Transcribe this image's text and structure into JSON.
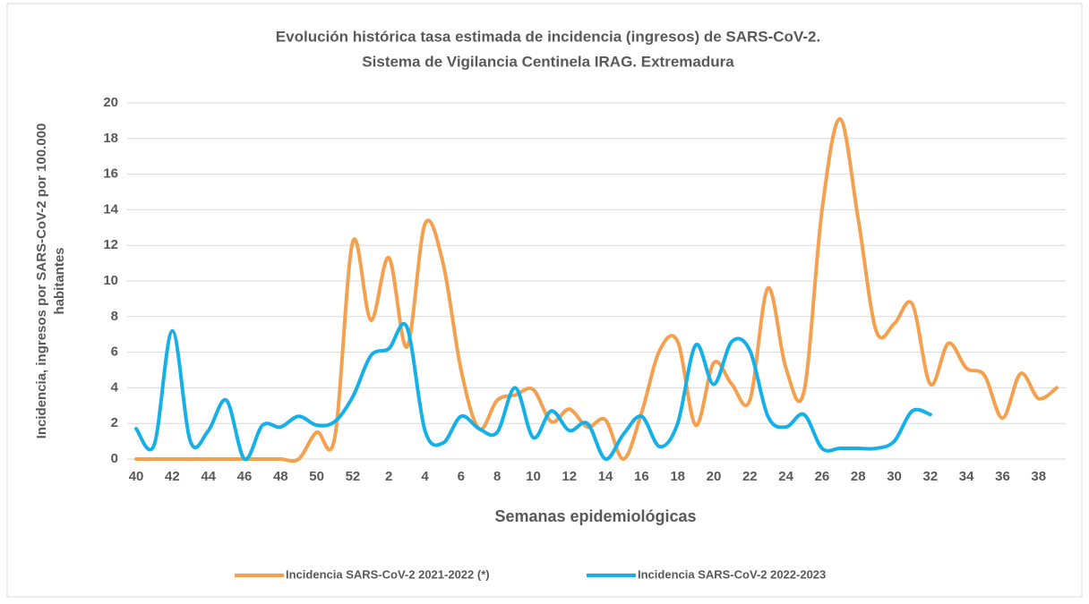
{
  "chart_data": {
    "type": "line",
    "title": [
      "Evolución histórica tasa estimada de incidencia (ingresos) de SARS-CoV-2.",
      "Sistema de Vigilancia Centinela IRAG. Extremadura"
    ],
    "x_label": "Semanas epidemiológicas",
    "y_label": [
      "Incidencia, ingresos por SARS-CoV-2 por  100.000",
      "habitantes"
    ],
    "categories": [
      "40",
      null,
      "42",
      null,
      "44",
      null,
      "46",
      null,
      "48",
      null,
      "50",
      null,
      "52",
      null,
      "2",
      null,
      "4",
      null,
      "6",
      null,
      "8",
      null,
      "10",
      null,
      "12",
      null,
      "14",
      null,
      "16",
      null,
      "18",
      null,
      "20",
      null,
      "22",
      null,
      "24",
      null,
      "26",
      null,
      "28",
      null,
      "30",
      null,
      "32",
      null,
      "34",
      null,
      "36",
      null,
      "38",
      null
    ],
    "series": [
      {
        "name": "Incidencia SARS-CoV-2 2021-2022 (*)",
        "color": "#f4a04f",
        "values": [
          0,
          0,
          0,
          0,
          0,
          0,
          0,
          0,
          0,
          0,
          1.5,
          1.2,
          12.2,
          7.8,
          11.3,
          6.3,
          13.2,
          11,
          5,
          1.7,
          3.3,
          3.6,
          3.9,
          2.1,
          2.8,
          1.8,
          2.2,
          0,
          2.6,
          6.1,
          6.6,
          1.9,
          5.4,
          4.2,
          3.3,
          9.6,
          5.1,
          3.8,
          14,
          19.1,
          13.5,
          7.2,
          7.6,
          8.7,
          4.2,
          6.5,
          5.1,
          4.7,
          2.3,
          4.8,
          3.4,
          4.0
        ]
      },
      {
        "name": "Incidencia SARS-CoV-2 2022-2023",
        "color": "#16b0e8",
        "values": [
          1.7,
          0.8,
          7.2,
          1.0,
          1.6,
          3.3,
          0,
          1.9,
          1.8,
          2.4,
          1.9,
          2.1,
          3.5,
          5.8,
          6.2,
          7.4,
          1.6,
          0.9,
          2.4,
          1.7,
          1.5,
          4.0,
          1.2,
          2.7,
          1.6,
          2.0,
          0,
          1.4,
          2.4,
          0.7,
          2.0,
          6.4,
          4.2,
          6.6,
          6.1,
          2.4,
          1.8,
          2.5,
          0.6,
          0.6,
          0.6,
          0.6,
          1.0,
          2.7,
          2.5,
          null,
          null,
          null,
          null,
          null,
          null,
          null
        ]
      }
    ],
    "ylim": [
      0,
      20
    ],
    "yticks": [
      0,
      2,
      4,
      6,
      8,
      10,
      12,
      14,
      16,
      18,
      20
    ],
    "grid": true
  }
}
